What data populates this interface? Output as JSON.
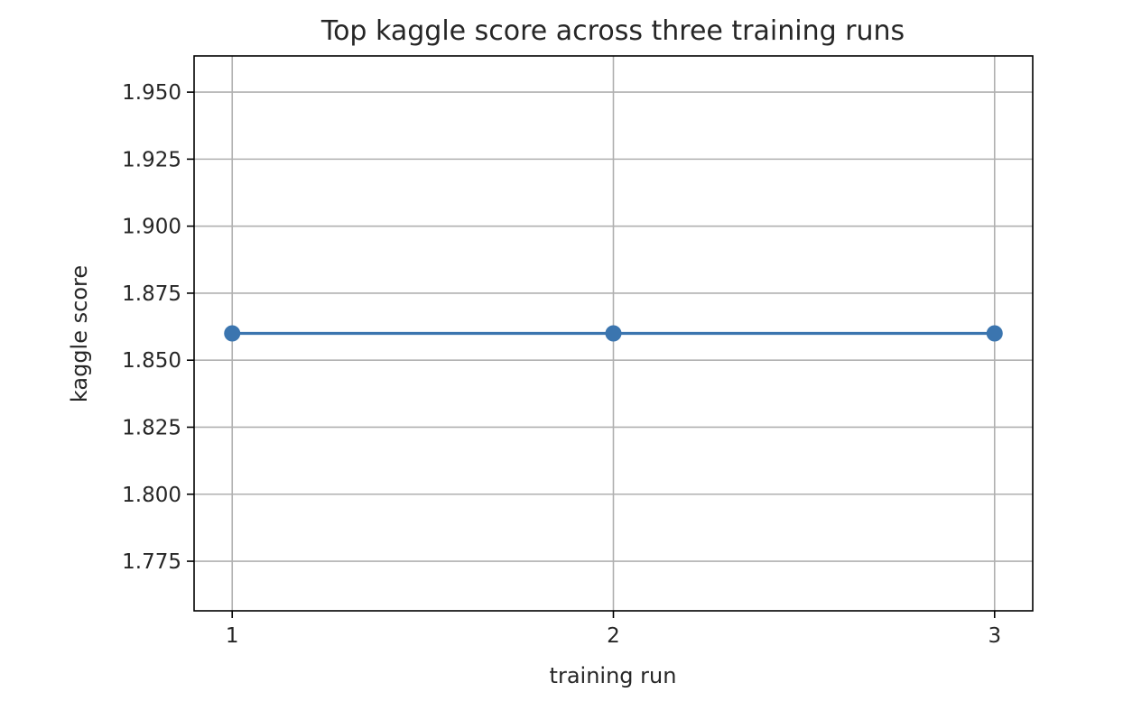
{
  "chart_data": {
    "type": "line",
    "title": "Top kaggle score across three training runs",
    "xlabel": "training run",
    "ylabel": "kaggle score",
    "x": [
      1,
      2,
      3
    ],
    "x_ticks": [
      1,
      2,
      3
    ],
    "x_tick_labels": [
      "1",
      "2",
      "3"
    ],
    "xlim": [
      0.9,
      3.1
    ],
    "y_ticks": [
      1.775,
      1.8,
      1.825,
      1.85,
      1.875,
      1.9,
      1.925,
      1.95
    ],
    "y_tick_labels": [
      "1.775",
      "1.800",
      "1.825",
      "1.850",
      "1.875",
      "1.900",
      "1.925",
      "1.950"
    ],
    "ylim": [
      1.7565,
      1.9635
    ],
    "series": [
      {
        "values": [
          1.86,
          1.86,
          1.86
        ],
        "marker": "circle",
        "color": "#3b75af"
      }
    ],
    "grid": true,
    "legend": "none"
  }
}
